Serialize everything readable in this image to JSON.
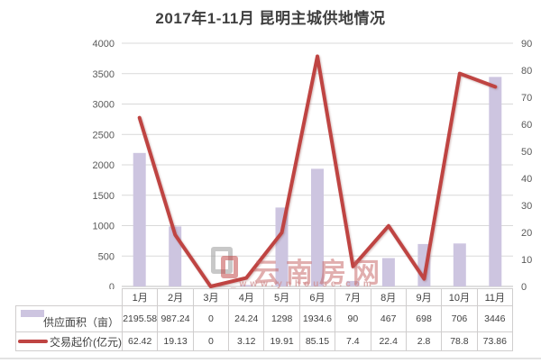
{
  "page": {
    "title": "2017年1-11月 昆明主城供地情况"
  },
  "chart_data": {
    "type": "bar",
    "subtype": "combo-bar-line",
    "title": "2017年1-11月 昆明主城供地情况",
    "categories": [
      "1月",
      "2月",
      "3月",
      "4月",
      "5月",
      "6月",
      "7月",
      "8月",
      "9月",
      "10月",
      "11月"
    ],
    "series": [
      {
        "name": "供应面积（亩）",
        "chart": "bar",
        "axis": "left",
        "color": "#cdc5e0",
        "values": [
          "2195.58",
          "987.24",
          "0",
          "24.24",
          "1298",
          "1934.6",
          "90",
          "467",
          "698",
          "706",
          "3446"
        ]
      },
      {
        "name": "交易起价(亿元)",
        "chart": "line",
        "axis": "right",
        "color": "#bf4442",
        "values": [
          "62.42",
          "19.13",
          "0",
          "3.12",
          "19.91",
          "85.15",
          "7.4",
          "22.4",
          "2.8",
          "78.8",
          "73.86"
        ]
      }
    ],
    "left_axis": {
      "min": 0,
      "max": 4000,
      "step": 500,
      "ticks": [
        "4000",
        "3500",
        "3000",
        "2500",
        "2000",
        "1500",
        "1000",
        "500",
        "0"
      ]
    },
    "right_axis": {
      "min": 0,
      "max": 90,
      "step": 10,
      "ticks": [
        "90",
        "80",
        "70",
        "60",
        "50",
        "40",
        "30",
        "20",
        "10",
        "0"
      ]
    },
    "grid": "horizontal",
    "gridline_color": "#d9d9d9",
    "axis_line_color": "#bfbfbf",
    "legend_position": "table-left"
  },
  "watermark": {
    "brand": "云南房网",
    "site": "_www.ynhouse.com"
  },
  "colors": {
    "title_text": "#3f3f3f",
    "axis_text": "#595959",
    "table_text": "#404040",
    "table_border": "#d0cece",
    "bar_fill": "#cdc5e0",
    "line_stroke": "#bf4442",
    "watermark_pink": "#c56060"
  }
}
